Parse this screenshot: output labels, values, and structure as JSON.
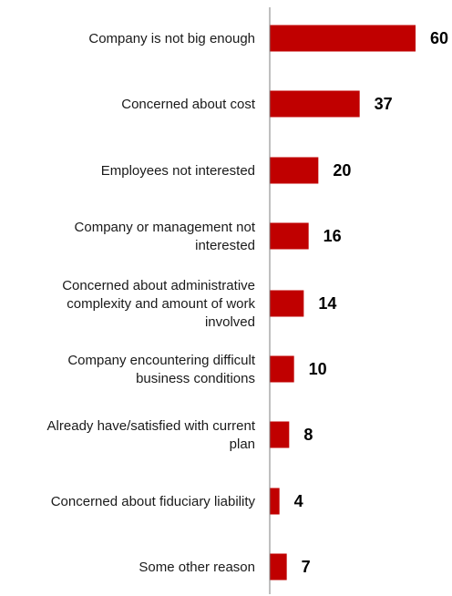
{
  "chart_data": {
    "type": "bar",
    "orientation": "horizontal",
    "title": "",
    "xlabel": "",
    "ylabel": "",
    "xlim": [
      0,
      60
    ],
    "grid": false,
    "legend": "none",
    "bar_color": "#c00000",
    "axis_color": "#7f7f7f",
    "categories": [
      [
        "Company is not big enough"
      ],
      [
        "Concerned about cost"
      ],
      [
        "Employees not interested"
      ],
      [
        "Company or management not",
        "interested"
      ],
      [
        "Concerned about administrative",
        "complexity and amount of work",
        "involved"
      ],
      [
        "Company encountering difficult",
        "business conditions"
      ],
      [
        "Already have/satisfied with current",
        "plan"
      ],
      [
        "Concerned about fiduciary liability"
      ],
      [
        "Some other reason"
      ]
    ],
    "values": [
      60,
      37,
      20,
      16,
      14,
      10,
      8,
      4,
      7
    ]
  }
}
